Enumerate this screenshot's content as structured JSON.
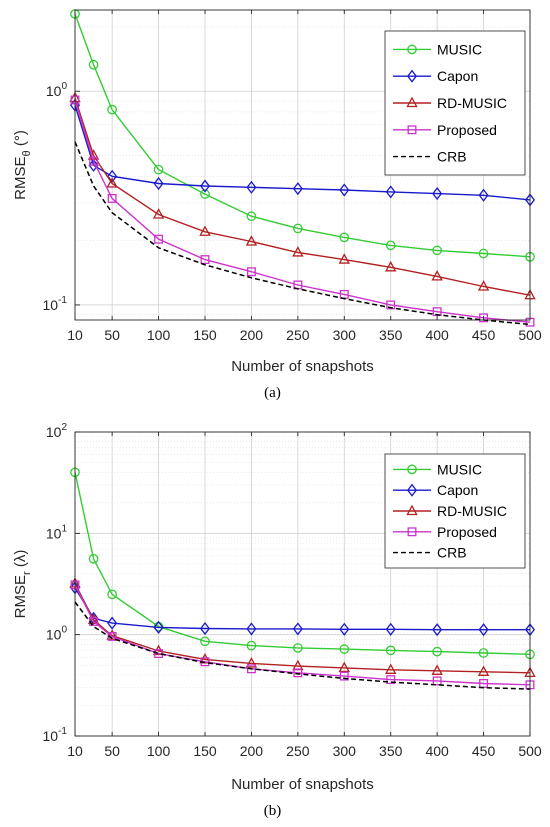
{
  "chart_data": [
    {
      "type": "line",
      "caption": "(a)",
      "xlabel": "Number of snapshots",
      "ylabel_main": "RMSE",
      "ylabel_sub": "θ",
      "ylabel_unit": "(°)",
      "yscale": "log",
      "ylim": [
        0.085,
        2.4
      ],
      "xlim": [
        10,
        500
      ],
      "grid": true,
      "legend_position": "top-right",
      "x_ticks": [
        10,
        50,
        100,
        150,
        200,
        250,
        300,
        350,
        400,
        450,
        500
      ],
      "y_ticks": [
        {
          "value": 0.1,
          "base": "10",
          "exp": "-1"
        },
        {
          "value": 1,
          "base": "10",
          "exp": "0"
        }
      ],
      "x": [
        10,
        30,
        50,
        100,
        150,
        200,
        250,
        300,
        350,
        400,
        450,
        500
      ],
      "series": [
        {
          "name": "MUSIC",
          "color": "#33cc33",
          "marker": "circle",
          "values": [
            2.3,
            1.33,
            0.82,
            0.43,
            0.33,
            0.26,
            0.228,
            0.207,
            0.19,
            0.18,
            0.174,
            0.168
          ]
        },
        {
          "name": "Capon",
          "color": "#1a1acc",
          "marker": "diamond",
          "values": [
            0.86,
            0.45,
            0.4,
            0.37,
            0.36,
            0.355,
            0.35,
            0.345,
            0.338,
            0.332,
            0.326,
            0.31
          ]
        },
        {
          "name": "RD-MUSIC",
          "color": "#b32020",
          "marker": "triangle",
          "values": [
            0.93,
            0.5,
            0.37,
            0.265,
            0.22,
            0.198,
            0.176,
            0.163,
            0.15,
            0.136,
            0.122,
            0.111
          ]
        },
        {
          "name": "Proposed",
          "color": "#cc33cc",
          "marker": "square",
          "values": [
            0.91,
            0.47,
            0.315,
            0.203,
            0.163,
            0.143,
            0.124,
            0.112,
            0.1,
            0.093,
            0.087,
            0.083
          ]
        },
        {
          "name": "CRB",
          "color": "#000000",
          "marker": "none",
          "dash": true,
          "values": [
            0.58,
            0.36,
            0.27,
            0.185,
            0.154,
            0.134,
            0.119,
            0.107,
            0.097,
            0.09,
            0.085,
            0.081
          ]
        }
      ]
    },
    {
      "type": "line",
      "caption": "(b)",
      "xlabel": "Number of snapshots",
      "ylabel_main": "RMSE",
      "ylabel_sub": "r",
      "ylabel_unit": "(λ)",
      "yscale": "log",
      "ylim": [
        0.1,
        100
      ],
      "xlim": [
        10,
        500
      ],
      "grid": true,
      "legend_position": "top-right",
      "x_ticks": [
        10,
        50,
        100,
        150,
        200,
        250,
        300,
        350,
        400,
        450,
        500
      ],
      "y_ticks": [
        {
          "value": 0.1,
          "base": "10",
          "exp": "-1"
        },
        {
          "value": 1,
          "base": "10",
          "exp": "0"
        },
        {
          "value": 10,
          "base": "10",
          "exp": "1"
        },
        {
          "value": 100,
          "base": "10",
          "exp": "2"
        }
      ],
      "x": [
        10,
        30,
        50,
        100,
        150,
        200,
        250,
        300,
        350,
        400,
        450,
        500
      ],
      "series": [
        {
          "name": "MUSIC",
          "color": "#33cc33",
          "marker": "circle",
          "values": [
            40,
            5.6,
            2.5,
            1.2,
            0.86,
            0.78,
            0.74,
            0.72,
            0.7,
            0.68,
            0.66,
            0.64
          ]
        },
        {
          "name": "Capon",
          "color": "#1a1acc",
          "marker": "diamond",
          "values": [
            2.9,
            1.45,
            1.3,
            1.18,
            1.15,
            1.14,
            1.14,
            1.13,
            1.13,
            1.12,
            1.12,
            1.12
          ]
        },
        {
          "name": "RD-MUSIC",
          "color": "#b32020",
          "marker": "triangle",
          "values": [
            3.2,
            1.4,
            0.98,
            0.69,
            0.57,
            0.52,
            0.49,
            0.47,
            0.45,
            0.44,
            0.43,
            0.42
          ]
        },
        {
          "name": "Proposed",
          "color": "#cc33cc",
          "marker": "square",
          "values": [
            3.1,
            1.35,
            0.96,
            0.65,
            0.54,
            0.46,
            0.42,
            0.39,
            0.36,
            0.35,
            0.33,
            0.32
          ]
        },
        {
          "name": "CRB",
          "color": "#000000",
          "marker": "none",
          "dash": true,
          "values": [
            2.1,
            1.2,
            0.92,
            0.65,
            0.53,
            0.46,
            0.41,
            0.37,
            0.34,
            0.32,
            0.3,
            0.29
          ]
        }
      ]
    }
  ]
}
